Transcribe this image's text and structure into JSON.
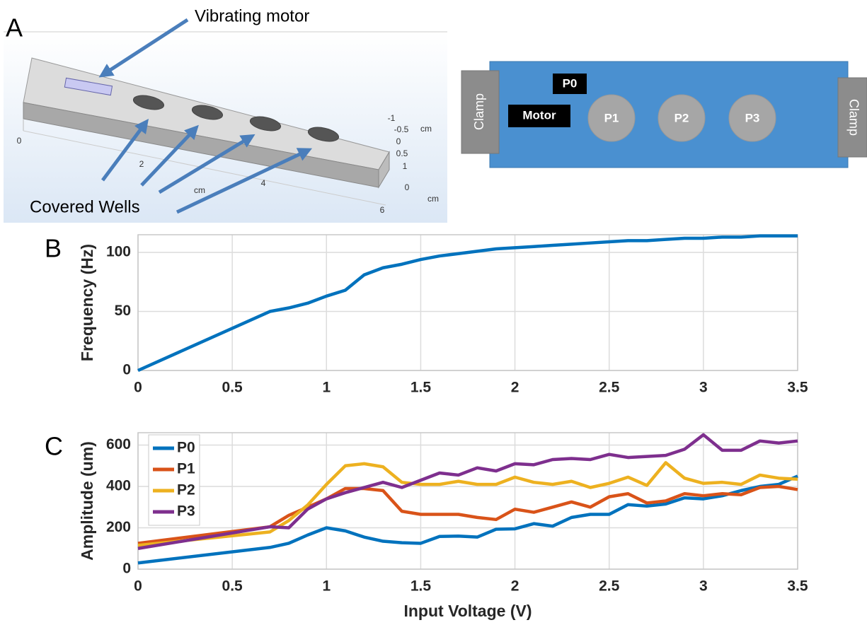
{
  "panel_a": {
    "label": "A",
    "render": {
      "motor_label": "Vibrating motor",
      "wells_label": "Covered Wells",
      "axis_labels": [
        "0",
        "2",
        "cm",
        "4",
        "6",
        "-1",
        "-0.5",
        "cm",
        "0",
        "0.5",
        "1",
        "0",
        "cm"
      ]
    },
    "schematic": {
      "clamps": [
        "Clamp",
        "Clamp"
      ],
      "p0": "P0",
      "motor": "Motor",
      "wells": [
        "P1",
        "P2",
        "P3"
      ]
    }
  },
  "chart_data": [
    {
      "type": "line",
      "panel_label": "B",
      "y_label": "Frequency (Hz)",
      "x": [
        0,
        0.7,
        0.8,
        0.9,
        1.0,
        1.1,
        1.2,
        1.3,
        1.4,
        1.5,
        1.6,
        1.7,
        1.8,
        1.9,
        2.0,
        2.1,
        2.2,
        2.3,
        2.4,
        2.5,
        2.6,
        2.7,
        2.8,
        2.9,
        3.0,
        3.1,
        3.2,
        3.3,
        3.4,
        3.5
      ],
      "values": [
        0,
        50,
        53,
        57,
        63,
        68,
        81,
        87,
        90,
        94,
        97,
        99,
        101,
        103,
        104,
        105,
        106,
        107,
        108,
        109,
        110,
        110,
        111,
        112,
        112,
        113,
        113,
        114,
        114,
        114
      ],
      "color": "#0072bd",
      "xlim": [
        0,
        3.5
      ],
      "xticks": [
        0,
        0.5,
        1,
        1.5,
        2,
        2.5,
        3,
        3.5
      ],
      "ylim": [
        0,
        115
      ],
      "yticks": [
        0,
        50,
        100
      ],
      "grid": true
    },
    {
      "type": "line",
      "panel_label": "C",
      "x_label": "Input Voltage (V)",
      "y_label": "Amplitude (um)",
      "x": [
        0,
        0.7,
        0.8,
        0.9,
        1.0,
        1.1,
        1.2,
        1.3,
        1.4,
        1.5,
        1.6,
        1.7,
        1.8,
        1.9,
        2.0,
        2.1,
        2.2,
        2.3,
        2.4,
        2.5,
        2.6,
        2.7,
        2.8,
        2.9,
        3.0,
        3.1,
        3.2,
        3.3,
        3.4,
        3.5
      ],
      "series": [
        {
          "name": "P0",
          "color": "#0072bd",
          "values": [
            30,
            105,
            125,
            165,
            200,
            185,
            155,
            135,
            128,
            125,
            158,
            160,
            155,
            193,
            195,
            220,
            208,
            250,
            265,
            265,
            312,
            305,
            315,
            345,
            340,
            355,
            380,
            400,
            410,
            450
          ]
        },
        {
          "name": "P1",
          "color": "#d95319",
          "values": [
            125,
            205,
            260,
            300,
            340,
            390,
            390,
            380,
            280,
            265,
            265,
            265,
            250,
            240,
            290,
            275,
            300,
            325,
            300,
            350,
            365,
            320,
            330,
            365,
            355,
            365,
            360,
            395,
            400,
            385
          ]
        },
        {
          "name": "P2",
          "color": "#edb120",
          "values": [
            115,
            180,
            235,
            310,
            410,
            500,
            510,
            495,
            420,
            410,
            410,
            425,
            410,
            410,
            445,
            420,
            410,
            425,
            395,
            415,
            445,
            405,
            515,
            440,
            415,
            420,
            410,
            455,
            440,
            435
          ]
        },
        {
          "name": "P3",
          "color": "#7e2f8e",
          "values": [
            100,
            205,
            200,
            290,
            340,
            370,
            395,
            420,
            395,
            430,
            465,
            455,
            490,
            475,
            510,
            505,
            530,
            535,
            530,
            555,
            540,
            545,
            550,
            580,
            650,
            575,
            575,
            620,
            610,
            620
          ]
        }
      ],
      "xlim": [
        0,
        3.5
      ],
      "xticks": [
        0,
        0.5,
        1,
        1.5,
        2,
        2.5,
        3,
        3.5
      ],
      "ylim": [
        0,
        660
      ],
      "yticks": [
        0,
        200,
        400,
        600
      ],
      "grid": true,
      "legend": "upper-left"
    }
  ]
}
